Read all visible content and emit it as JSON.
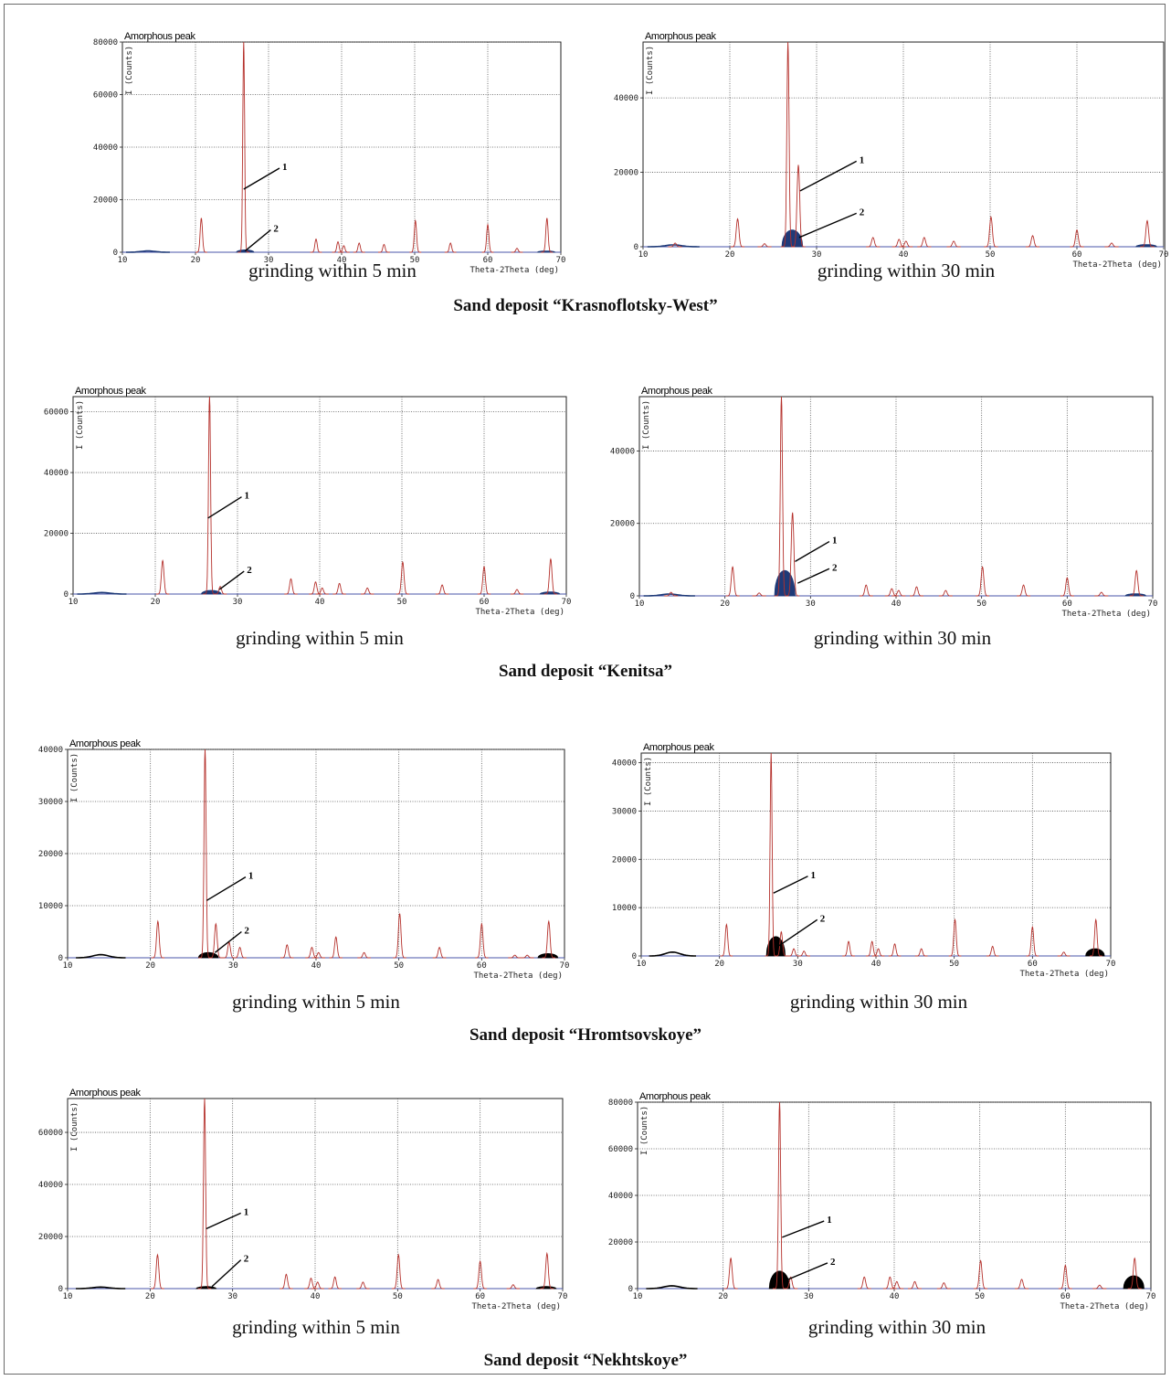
{
  "figure": {
    "x_axis_label": "Theta-2Theta (deg)",
    "y_axis_label": "I (Counts)",
    "panel_title": "Amorphous peak",
    "pointer_labels": [
      "1",
      "2"
    ],
    "colors": {
      "pattern": "#b5312c",
      "fill_blue": "#1f3a78",
      "fill_black": "#000000",
      "baseline": "#4a55a8",
      "grid": "#555555"
    }
  },
  "captions": {
    "row1_left": "grinding within 5 min",
    "row1_right": "grinding within 30 min",
    "row1_deposit": "Sand deposit “Krasnoflotsky-West”",
    "row2_left": "grinding within 5 min",
    "row2_right": "grinding within 30 min",
    "row2_deposit": "Sand deposit “Kenitsa”",
    "row3_left": "grinding within 5 min",
    "row3_right": "grinding within 30 min",
    "row3_deposit": "Sand deposit “Hromtsovskoye”",
    "row4_left": "grinding within 5 min",
    "row4_right": "grinding within 30 min",
    "row4_deposit": "Sand deposit “Nekhtskoye”"
  },
  "chart_data": [
    {
      "type": "line",
      "deposit": "Sand deposit “Krasnoflotsky-West”",
      "caption": "grinding within 5 min",
      "title": "Amorphous peak",
      "xlabel": "Theta-2Theta (deg)",
      "ylabel": "I (Counts)",
      "xlim": [
        10,
        70
      ],
      "ylim": [
        0,
        80000
      ],
      "xticks": [
        10,
        20,
        30,
        40,
        50,
        60,
        70
      ],
      "yticks": [
        0,
        20000,
        40000,
        60000,
        80000
      ],
      "ytick_labels": [
        "0",
        "20000",
        "40000",
        "60000",
        "80000"
      ],
      "grid": true,
      "fill_color": "#1f3a78",
      "peaks": [
        [
          20.8,
          13000
        ],
        [
          26.6,
          80000
        ],
        [
          36.5,
          5000
        ],
        [
          39.5,
          4000
        ],
        [
          40.3,
          2500
        ],
        [
          42.4,
          3500
        ],
        [
          45.8,
          3000
        ],
        [
          50.1,
          12000
        ],
        [
          54.9,
          3500
        ],
        [
          60.0,
          10500
        ],
        [
          64.0,
          1500
        ],
        [
          68.1,
          13000
        ]
      ],
      "amorphous_fill": [
        [
          26.8,
          900
        ],
        [
          68.0,
          500
        ]
      ],
      "bump": [
        13.5,
        500
      ],
      "annotations": [
        {
          "label": "1",
          "x": 26.6,
          "y": 24000,
          "tx": 31.5,
          "ty": 32000
        },
        {
          "label": "2",
          "x": 26.8,
          "y": 500,
          "tx": 30.3,
          "ty": 8500
        }
      ]
    },
    {
      "type": "line",
      "deposit": "Sand deposit “Krasnoflotsky-West”",
      "caption": "grinding within 30 min",
      "title": "Amorphous peak",
      "xlabel": "Theta-2Theta (deg)",
      "ylabel": "I (Counts)",
      "xlim": [
        10,
        70
      ],
      "ylim": [
        0,
        55000
      ],
      "xticks": [
        10,
        20,
        30,
        40,
        50,
        60,
        70
      ],
      "yticks": [
        0,
        20000,
        40000
      ],
      "ytick_labels": [
        "0",
        "20000",
        "40000"
      ],
      "grid": true,
      "fill_color": "#1f3a78",
      "peaks": [
        [
          13.7,
          1000
        ],
        [
          20.9,
          7500
        ],
        [
          24.0,
          800
        ],
        [
          26.7,
          55000
        ],
        [
          27.9,
          22000
        ],
        [
          36.5,
          2500
        ],
        [
          39.5,
          2000
        ],
        [
          40.3,
          1500
        ],
        [
          42.4,
          2500
        ],
        [
          45.8,
          1500
        ],
        [
          50.1,
          8000
        ],
        [
          54.9,
          3000
        ],
        [
          60.0,
          4500
        ],
        [
          64.0,
          1000
        ],
        [
          68.1,
          7000
        ]
      ],
      "amorphous_fill": [
        [
          27.2,
          4500
        ],
        [
          68.0,
          600
        ]
      ],
      "bump": [
        13.5,
        500
      ],
      "annotations": [
        {
          "label": "1",
          "x": 28.1,
          "y": 15000,
          "tx": 34.6,
          "ty": 23000
        },
        {
          "label": "2",
          "x": 28.0,
          "y": 2500,
          "tx": 34.6,
          "ty": 9000
        }
      ]
    },
    {
      "type": "line",
      "deposit": "Sand deposit “Kenitsa”",
      "caption": "grinding within 5 min",
      "title": "Amorphous peak",
      "xlabel": "Theta-2Theta (deg)",
      "ylabel": "I (Counts)",
      "xlim": [
        10,
        70
      ],
      "ylim": [
        0,
        65000
      ],
      "xticks": [
        10,
        20,
        30,
        40,
        50,
        60,
        70
      ],
      "yticks": [
        0,
        20000,
        40000,
        60000
      ],
      "ytick_labels": [
        "0",
        "20000",
        "40000",
        "60000"
      ],
      "grid": true,
      "fill_color": "#1f3a78",
      "peaks": [
        [
          20.9,
          11000
        ],
        [
          26.6,
          65000
        ],
        [
          27.9,
          2500
        ],
        [
          36.5,
          5000
        ],
        [
          39.5,
          4000
        ],
        [
          40.3,
          2000
        ],
        [
          42.4,
          3500
        ],
        [
          45.8,
          2000
        ],
        [
          50.1,
          10500
        ],
        [
          54.9,
          3000
        ],
        [
          60.0,
          9000
        ],
        [
          64.0,
          1500
        ],
        [
          68.1,
          11500
        ]
      ],
      "amorphous_fill": [
        [
          26.8,
          1200
        ],
        [
          68.0,
          700
        ]
      ],
      "bump": [
        13.5,
        500
      ],
      "annotations": [
        {
          "label": "1",
          "x": 26.4,
          "y": 25000,
          "tx": 30.5,
          "ty": 32000
        },
        {
          "label": "2",
          "x": 27.8,
          "y": 1500,
          "tx": 30.8,
          "ty": 7500
        }
      ]
    },
    {
      "type": "line",
      "deposit": "Sand deposit “Kenitsa”",
      "caption": "grinding within 30 min",
      "title": "Amorphous peak",
      "xlabel": "Theta-2Theta (deg)",
      "ylabel": "I (Counts)",
      "xlim": [
        10,
        70
      ],
      "ylim": [
        0,
        55000
      ],
      "xticks": [
        10,
        20,
        30,
        40,
        50,
        60,
        70
      ],
      "yticks": [
        0,
        20000,
        40000
      ],
      "ytick_labels": [
        "0",
        "20000",
        "40000"
      ],
      "grid": true,
      "fill_color": "#1f3a78",
      "peaks": [
        [
          13.7,
          1000
        ],
        [
          20.9,
          8000
        ],
        [
          24.0,
          800
        ],
        [
          26.6,
          55000
        ],
        [
          27.9,
          23000
        ],
        [
          36.5,
          3000
        ],
        [
          39.5,
          2000
        ],
        [
          40.3,
          1500
        ],
        [
          42.4,
          2500
        ],
        [
          45.8,
          1500
        ],
        [
          50.1,
          8000
        ],
        [
          54.9,
          3000
        ],
        [
          60.0,
          5000
        ],
        [
          64.0,
          1000
        ],
        [
          68.1,
          7000
        ]
      ],
      "amorphous_fill": [
        [
          27.0,
          7000
        ],
        [
          68.0,
          600
        ]
      ],
      "bump": [
        13.5,
        500
      ],
      "annotations": [
        {
          "label": "1",
          "x": 28.2,
          "y": 9500,
          "tx": 32.2,
          "ty": 15000
        },
        {
          "label": "2",
          "x": 28.5,
          "y": 3500,
          "tx": 32.2,
          "ty": 7500
        }
      ]
    },
    {
      "type": "line",
      "deposit": "Sand deposit “Hromtsovskoye”",
      "caption": "grinding within 5 min",
      "title": "Amorphous peak",
      "xlabel": "Theta-2Theta (deg)",
      "ylabel": "I (Counts)",
      "xlim": [
        10,
        70
      ],
      "ylim": [
        0,
        40000
      ],
      "xticks": [
        10,
        20,
        30,
        40,
        50,
        60,
        70
      ],
      "yticks": [
        0,
        10000,
        20000,
        30000,
        40000
      ],
      "ytick_labels": [
        "0",
        "10000",
        "20000",
        "30000",
        "40000"
      ],
      "grid": true,
      "fill_color": "#000000",
      "peaks": [
        [
          20.9,
          7000
        ],
        [
          26.6,
          40000
        ],
        [
          27.9,
          6500
        ],
        [
          29.5,
          3000
        ],
        [
          30.8,
          2000
        ],
        [
          36.5,
          2500
        ],
        [
          39.5,
          2000
        ],
        [
          40.3,
          1000
        ],
        [
          42.4,
          4000
        ],
        [
          45.8,
          1000
        ],
        [
          50.1,
          8500
        ],
        [
          54.9,
          2000
        ],
        [
          60.0,
          6500
        ],
        [
          64.0,
          500
        ],
        [
          65.5,
          500
        ],
        [
          68.1,
          7000
        ]
      ],
      "amorphous_fill": [
        [
          27.0,
          1000
        ],
        [
          68.0,
          800
        ]
      ],
      "bump": [
        14.0,
        600
      ],
      "annotations": [
        {
          "label": "1",
          "x": 26.8,
          "y": 11000,
          "tx": 31.5,
          "ty": 15500
        },
        {
          "label": "2",
          "x": 27.8,
          "y": 1000,
          "tx": 31.0,
          "ty": 5000
        }
      ]
    },
    {
      "type": "line",
      "deposit": "Sand deposit “Hromtsovskoye”",
      "caption": "grinding within 30 min",
      "title": "Amorphous peak",
      "xlabel": "Theta-2Theta (deg)",
      "ylabel": "I (Counts)",
      "xlim": [
        10,
        70
      ],
      "ylim": [
        0,
        42000
      ],
      "xticks": [
        10,
        20,
        30,
        40,
        50,
        60,
        70
      ],
      "yticks": [
        0,
        10000,
        20000,
        30000,
        40000
      ],
      "ytick_labels": [
        "0",
        "10000",
        "20000",
        "30000",
        "40000"
      ],
      "grid": true,
      "fill_color": "#000000",
      "peaks": [
        [
          20.9,
          6500
        ],
        [
          26.6,
          42000
        ],
        [
          27.9,
          5000
        ],
        [
          29.5,
          1500
        ],
        [
          30.8,
          1000
        ],
        [
          36.5,
          3000
        ],
        [
          39.5,
          3000
        ],
        [
          40.3,
          1500
        ],
        [
          42.4,
          2500
        ],
        [
          45.8,
          1500
        ],
        [
          50.1,
          7500
        ],
        [
          54.9,
          2000
        ],
        [
          60.0,
          6000
        ],
        [
          64.0,
          800
        ],
        [
          68.1,
          7500
        ]
      ],
      "amorphous_fill": [
        [
          27.2,
          4000
        ],
        [
          68.0,
          1500
        ]
      ],
      "bump": [
        14.0,
        800
      ],
      "annotations": [
        {
          "label": "1",
          "x": 26.9,
          "y": 13000,
          "tx": 31.3,
          "ty": 16500
        },
        {
          "label": "2",
          "x": 27.5,
          "y": 2000,
          "tx": 32.5,
          "ty": 7500
        }
      ]
    },
    {
      "type": "line",
      "deposit": "Sand deposit “Nekhtskoye”",
      "caption": "grinding within 5 min",
      "title": "Amorphous peak",
      "xlabel": "Theta-2Theta (deg)",
      "ylabel": "I (Counts)",
      "xlim": [
        10,
        70
      ],
      "ylim": [
        0,
        73000
      ],
      "xticks": [
        10,
        20,
        30,
        40,
        50,
        60,
        70
      ],
      "yticks": [
        0,
        20000,
        40000,
        60000
      ],
      "ytick_labels": [
        "0",
        "20000",
        "40000",
        "60000"
      ],
      "grid": true,
      "fill_color": "#000000",
      "peaks": [
        [
          20.9,
          13000
        ],
        [
          26.6,
          73000
        ],
        [
          36.5,
          5500
        ],
        [
          39.5,
          4000
        ],
        [
          40.3,
          2500
        ],
        [
          42.4,
          4500
        ],
        [
          45.8,
          2500
        ],
        [
          50.1,
          13000
        ],
        [
          54.9,
          3500
        ],
        [
          60.0,
          10500
        ],
        [
          64.0,
          1500
        ],
        [
          68.1,
          13500
        ]
      ],
      "amorphous_fill": [
        [
          26.8,
          800
        ],
        [
          68.0,
          800
        ]
      ],
      "bump": [
        14.0,
        600
      ],
      "annotations": [
        {
          "label": "1",
          "x": 26.8,
          "y": 23000,
          "tx": 31.0,
          "ty": 29000
        },
        {
          "label": "2",
          "x": 27.5,
          "y": 800,
          "tx": 31.0,
          "ty": 11000
        }
      ]
    },
    {
      "type": "line",
      "deposit": "Sand deposit “Nekhtskoye”",
      "caption": "grinding within 30 min",
      "title": "Amorphous peak",
      "xlabel": "Theta-2Theta (deg)",
      "ylabel": "I (Counts)",
      "xlim": [
        10,
        70
      ],
      "ylim": [
        0,
        80000
      ],
      "xticks": [
        10,
        20,
        30,
        40,
        50,
        60,
        70
      ],
      "yticks": [
        0,
        20000,
        40000,
        60000,
        80000
      ],
      "ytick_labels": [
        "0",
        "20000",
        "40000",
        "60000",
        "80000"
      ],
      "grid": true,
      "fill_color": "#000000",
      "peaks": [
        [
          20.9,
          13000
        ],
        [
          26.6,
          80000
        ],
        [
          27.9,
          5000
        ],
        [
          36.5,
          5000
        ],
        [
          39.5,
          5000
        ],
        [
          40.3,
          3000
        ],
        [
          42.4,
          3000
        ],
        [
          45.8,
          2500
        ],
        [
          50.1,
          12000
        ],
        [
          54.9,
          4000
        ],
        [
          60.0,
          10000
        ],
        [
          64.0,
          1500
        ],
        [
          68.1,
          13000
        ]
      ],
      "amorphous_fill": [
        [
          26.6,
          7500
        ],
        [
          68.0,
          5500
        ]
      ],
      "bump": [
        14.0,
        1200
      ],
      "annotations": [
        {
          "label": "1",
          "x": 26.9,
          "y": 22000,
          "tx": 31.8,
          "ty": 29000
        },
        {
          "label": "2",
          "x": 27.3,
          "y": 3500,
          "tx": 32.2,
          "ty": 11000
        }
      ]
    }
  ]
}
